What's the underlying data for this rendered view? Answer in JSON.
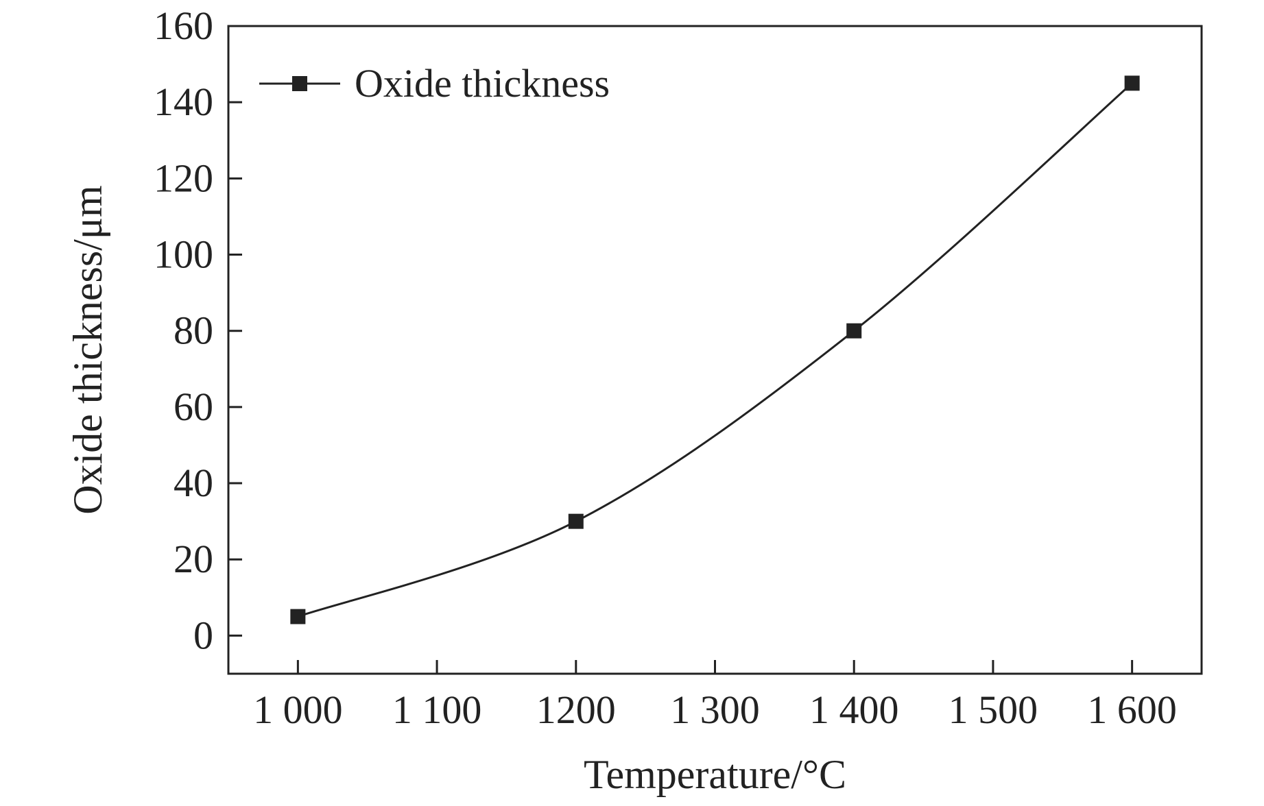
{
  "chart_data": {
    "type": "line",
    "title": "",
    "xlabel": "Temperature/°C",
    "ylabel": "Oxide thickness/μm",
    "xlim": [
      950,
      1650
    ],
    "ylim": [
      -10,
      160
    ],
    "x_ticks": [
      1000,
      1100,
      1200,
      1300,
      1400,
      1500,
      1600
    ],
    "x_tick_labels": [
      "1 000",
      "1 100",
      "1200",
      "1 300",
      "1 400",
      "1 500",
      "1 600"
    ],
    "y_ticks": [
      0,
      20,
      40,
      60,
      80,
      100,
      120,
      140,
      160
    ],
    "y_tick_labels": [
      "0",
      "20",
      "40",
      "60",
      "80",
      "100",
      "120",
      "140",
      "160"
    ],
    "grid": false,
    "legend_position": "top-left",
    "colors": {
      "line": "#222222",
      "marker": "#222222",
      "axis": "#222222"
    },
    "series": [
      {
        "name": "Oxide thickness",
        "marker": "square",
        "x": [
          1000,
          1200,
          1400,
          1600
        ],
        "y": [
          5,
          30,
          80,
          145
        ]
      }
    ]
  }
}
